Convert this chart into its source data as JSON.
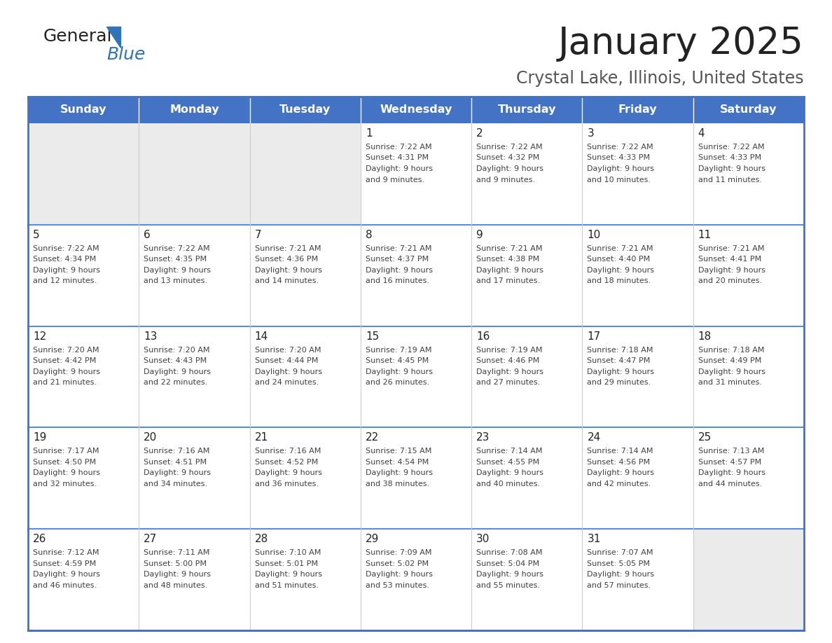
{
  "title": "January 2025",
  "subtitle": "Crystal Lake, Illinois, United States",
  "days_of_week": [
    "Sunday",
    "Monday",
    "Tuesday",
    "Wednesday",
    "Thursday",
    "Friday",
    "Saturday"
  ],
  "header_bg": "#4472C4",
  "header_text_color": "#FFFFFF",
  "cell_bg_filled": "#FFFFFF",
  "cell_bg_empty": "#EBEBEB",
  "border_color": "#4472C4",
  "row_divider_color": "#5B8DD9",
  "text_color": "#404040",
  "day_num_color": "#222222",
  "title_color": "#222222",
  "subtitle_color": "#555555",
  "logo_general_color": "#222222",
  "logo_blue_color": "#2E75B6",
  "calendar_data": [
    [
      null,
      null,
      null,
      {
        "day": 1,
        "sunrise": "7:22 AM",
        "sunset": "4:31 PM",
        "daylight": "9 hours and 9 minutes."
      },
      {
        "day": 2,
        "sunrise": "7:22 AM",
        "sunset": "4:32 PM",
        "daylight": "9 hours and 9 minutes."
      },
      {
        "day": 3,
        "sunrise": "7:22 AM",
        "sunset": "4:33 PM",
        "daylight": "9 hours and 10 minutes."
      },
      {
        "day": 4,
        "sunrise": "7:22 AM",
        "sunset": "4:33 PM",
        "daylight": "9 hours and 11 minutes."
      }
    ],
    [
      {
        "day": 5,
        "sunrise": "7:22 AM",
        "sunset": "4:34 PM",
        "daylight": "9 hours and 12 minutes."
      },
      {
        "day": 6,
        "sunrise": "7:22 AM",
        "sunset": "4:35 PM",
        "daylight": "9 hours and 13 minutes."
      },
      {
        "day": 7,
        "sunrise": "7:21 AM",
        "sunset": "4:36 PM",
        "daylight": "9 hours and 14 minutes."
      },
      {
        "day": 8,
        "sunrise": "7:21 AM",
        "sunset": "4:37 PM",
        "daylight": "9 hours and 16 minutes."
      },
      {
        "day": 9,
        "sunrise": "7:21 AM",
        "sunset": "4:38 PM",
        "daylight": "9 hours and 17 minutes."
      },
      {
        "day": 10,
        "sunrise": "7:21 AM",
        "sunset": "4:40 PM",
        "daylight": "9 hours and 18 minutes."
      },
      {
        "day": 11,
        "sunrise": "7:21 AM",
        "sunset": "4:41 PM",
        "daylight": "9 hours and 20 minutes."
      }
    ],
    [
      {
        "day": 12,
        "sunrise": "7:20 AM",
        "sunset": "4:42 PM",
        "daylight": "9 hours and 21 minutes."
      },
      {
        "day": 13,
        "sunrise": "7:20 AM",
        "sunset": "4:43 PM",
        "daylight": "9 hours and 22 minutes."
      },
      {
        "day": 14,
        "sunrise": "7:20 AM",
        "sunset": "4:44 PM",
        "daylight": "9 hours and 24 minutes."
      },
      {
        "day": 15,
        "sunrise": "7:19 AM",
        "sunset": "4:45 PM",
        "daylight": "9 hours and 26 minutes."
      },
      {
        "day": 16,
        "sunrise": "7:19 AM",
        "sunset": "4:46 PM",
        "daylight": "9 hours and 27 minutes."
      },
      {
        "day": 17,
        "sunrise": "7:18 AM",
        "sunset": "4:47 PM",
        "daylight": "9 hours and 29 minutes."
      },
      {
        "day": 18,
        "sunrise": "7:18 AM",
        "sunset": "4:49 PM",
        "daylight": "9 hours and 31 minutes."
      }
    ],
    [
      {
        "day": 19,
        "sunrise": "7:17 AM",
        "sunset": "4:50 PM",
        "daylight": "9 hours and 32 minutes."
      },
      {
        "day": 20,
        "sunrise": "7:16 AM",
        "sunset": "4:51 PM",
        "daylight": "9 hours and 34 minutes."
      },
      {
        "day": 21,
        "sunrise": "7:16 AM",
        "sunset": "4:52 PM",
        "daylight": "9 hours and 36 minutes."
      },
      {
        "day": 22,
        "sunrise": "7:15 AM",
        "sunset": "4:54 PM",
        "daylight": "9 hours and 38 minutes."
      },
      {
        "day": 23,
        "sunrise": "7:14 AM",
        "sunset": "4:55 PM",
        "daylight": "9 hours and 40 minutes."
      },
      {
        "day": 24,
        "sunrise": "7:14 AM",
        "sunset": "4:56 PM",
        "daylight": "9 hours and 42 minutes."
      },
      {
        "day": 25,
        "sunrise": "7:13 AM",
        "sunset": "4:57 PM",
        "daylight": "9 hours and 44 minutes."
      }
    ],
    [
      {
        "day": 26,
        "sunrise": "7:12 AM",
        "sunset": "4:59 PM",
        "daylight": "9 hours and 46 minutes."
      },
      {
        "day": 27,
        "sunrise": "7:11 AM",
        "sunset": "5:00 PM",
        "daylight": "9 hours and 48 minutes."
      },
      {
        "day": 28,
        "sunrise": "7:10 AM",
        "sunset": "5:01 PM",
        "daylight": "9 hours and 51 minutes."
      },
      {
        "day": 29,
        "sunrise": "7:09 AM",
        "sunset": "5:02 PM",
        "daylight": "9 hours and 53 minutes."
      },
      {
        "day": 30,
        "sunrise": "7:08 AM",
        "sunset": "5:04 PM",
        "daylight": "9 hours and 55 minutes."
      },
      {
        "day": 31,
        "sunrise": "7:07 AM",
        "sunset": "5:05 PM",
        "daylight": "9 hours and 57 minutes."
      },
      null
    ]
  ]
}
